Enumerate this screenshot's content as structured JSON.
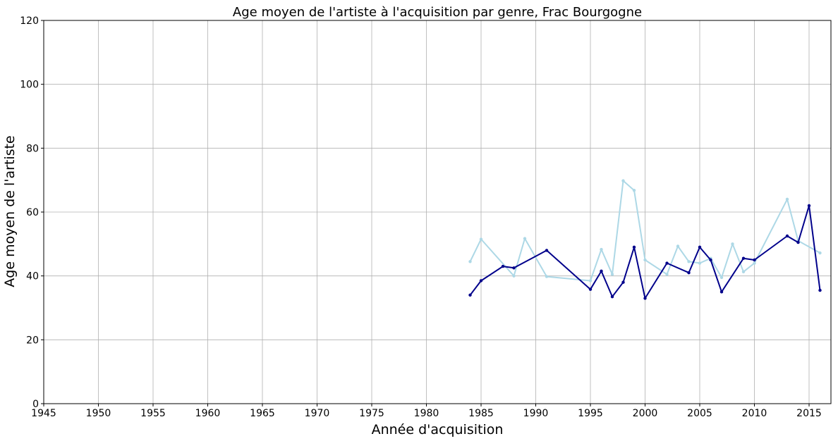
{
  "chart_data": {
    "type": "line",
    "title": "Age moyen de l'artiste à l'acquisition par genre, Frac Bourgogne",
    "xlabel": "Année d'acquisition",
    "ylabel": "Age moyen de l'artiste",
    "xlim": [
      1945,
      2017
    ],
    "ylim": [
      0,
      120
    ],
    "xticks": [
      1945,
      1950,
      1955,
      1960,
      1965,
      1970,
      1975,
      1980,
      1985,
      1990,
      1995,
      2000,
      2005,
      2010,
      2015
    ],
    "yticks": [
      0,
      20,
      40,
      60,
      80,
      100,
      120
    ],
    "grid": true,
    "series": [
      {
        "color": "#00008b",
        "x": [
          1984,
          1985,
          1987,
          1988,
          1991,
          1995,
          1996,
          1997,
          1998,
          1999,
          2000,
          2002,
          2004,
          2005,
          2006,
          2007,
          2009,
          2010,
          2013,
          2014,
          2015,
          2016
        ],
        "y": [
          34.0,
          38.5,
          43.0,
          42.5,
          48.0,
          35.8,
          41.5,
          33.5,
          38.0,
          49.0,
          33.0,
          44.0,
          41.0,
          49.0,
          45.0,
          35.0,
          45.5,
          45.0,
          52.5,
          50.5,
          62.0,
          35.5
        ]
      },
      {
        "color": "#add8e6",
        "x": [
          1984,
          1985,
          1988,
          1989,
          1991,
          1995,
          1996,
          1997,
          1998,
          1999,
          2000,
          2002,
          2003,
          2004,
          2005,
          2006,
          2007,
          2008,
          2009,
          2010,
          2013,
          2014,
          2016
        ],
        "y": [
          44.5,
          51.5,
          40.0,
          51.7,
          39.8,
          38.5,
          48.3,
          40.5,
          69.8,
          66.8,
          45.0,
          40.5,
          49.3,
          44.5,
          44.0,
          45.5,
          39.5,
          50.0,
          41.3,
          44.0,
          64.0,
          51.0,
          47.2
        ]
      }
    ]
  }
}
